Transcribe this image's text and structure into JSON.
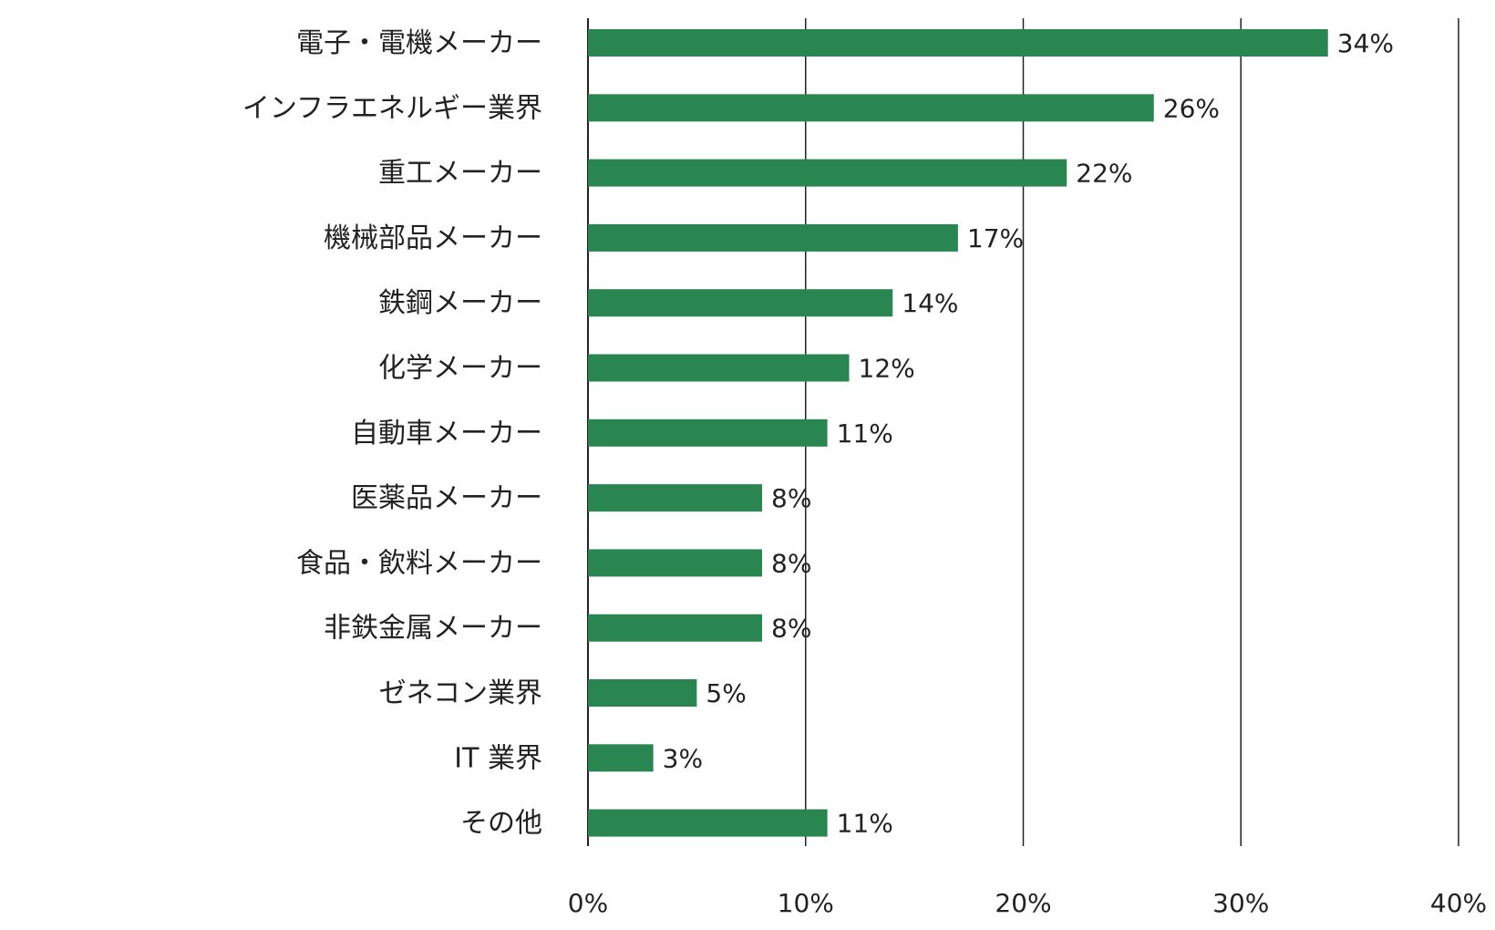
{
  "chart_data": {
    "type": "bar",
    "orientation": "horizontal",
    "categories": [
      "電子・電機メーカー",
      "インフラエネルギー業界",
      "重工メーカー",
      "機械部品メーカー",
      "鉄鋼メーカー",
      "化学メーカー",
      "自動車メーカー",
      "医薬品メーカー",
      "食品・飲料メーカー",
      "非鉄金属メーカー",
      "ゼネコン業界",
      "IT 業界",
      "その他"
    ],
    "values": [
      34,
      26,
      22,
      17,
      14,
      12,
      11,
      8,
      8,
      8,
      5,
      3,
      11
    ],
    "value_labels": [
      "34%",
      "26%",
      "22%",
      "17%",
      "14%",
      "12%",
      "11%",
      "8%",
      "8%",
      "8%",
      "5%",
      "3%",
      "11%"
    ],
    "xlim": [
      0,
      40
    ],
    "x_ticks": [
      0,
      10,
      20,
      30,
      40
    ],
    "x_tick_labels": [
      "0%",
      "10%",
      "20%",
      "30%",
      "40%"
    ],
    "grid": "vertical",
    "title": "",
    "xlabel": "",
    "ylabel": "",
    "colors": {
      "bar": "#2a8650",
      "text": "#222222",
      "grid": "#222222"
    }
  }
}
